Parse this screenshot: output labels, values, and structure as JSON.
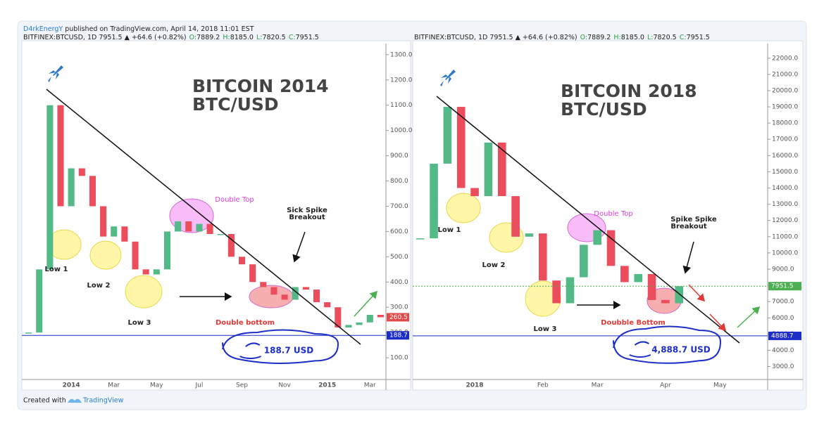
{
  "header": {
    "author": "D4rkEnergY",
    "published": "published on TradingView.com, April 14, 2018 11:01 EST"
  },
  "footer": {
    "created": "Created with",
    "brand": "TradingView"
  },
  "chart_data": [
    {
      "type": "candlestick",
      "symbol_line": [
        "BITFINEX:BTCUSD, 1D  7951.5 ▲ +64.6 (+0.82%)",
        "O:",
        "7889.2",
        "H:",
        "8185.0",
        "L:",
        "7820.5",
        "C:",
        "7951.5"
      ],
      "title": [
        "BITCOIN 2014",
        "BTC/USD"
      ],
      "categories": [
        null,
        null,
        null,
        null,
        "2014",
        null,
        null,
        null,
        "Mar",
        null,
        null,
        null,
        "May",
        null,
        null,
        null,
        "Jul",
        null,
        null,
        null,
        "Sep",
        null,
        null,
        null,
        "Nov",
        null,
        null,
        null,
        "2015",
        null,
        null,
        null,
        "Mar",
        null
      ],
      "values": [
        200,
        450,
        1100,
        700,
        850,
        820,
        700,
        580,
        620,
        560,
        450,
        430,
        450,
        600,
        640,
        600,
        630,
        590,
        590,
        500,
        470,
        400,
        380,
        350,
        330,
        380,
        370,
        320,
        300,
        220,
        230,
        240,
        270,
        260.5
      ],
      "up_color": "#53b987",
      "down_color": "#eb4d5c",
      "ylim": [
        14,
        1344
      ],
      "yticks": [
        {
          "value": 100,
          "label": "100.0"
        },
        {
          "value": 200,
          "label": "200.0"
        },
        {
          "value": 300,
          "label": "300.0"
        },
        {
          "value": 400,
          "label": "400.0"
        },
        {
          "value": 500,
          "label": "500.0"
        },
        {
          "value": 600,
          "label": "600.0"
        },
        {
          "value": 700,
          "label": "700.0"
        },
        {
          "value": 800,
          "label": "800.0"
        },
        {
          "value": 900,
          "label": "900.0"
        },
        {
          "value": 1000,
          "label": "1000.0"
        },
        {
          "value": 1100,
          "label": "1100.0"
        },
        {
          "value": 1200,
          "label": "1200.0"
        },
        {
          "value": 1300,
          "label": "1300.0"
        }
      ],
      "grid": false,
      "price_labels": [
        {
          "value": 260.5,
          "label": "260.5",
          "color": "#e04b4b",
          "line": "none"
        },
        {
          "value": 188.7,
          "label": "188.7",
          "color": "#1c2dc8",
          "line": "solid"
        }
      ],
      "annotations": {
        "double_top": "Double Top",
        "spike_1": "Sick Spike",
        "spike_2": "Breakout",
        "low1": "Low 1",
        "low2": "Low 2",
        "low3": "Low 3",
        "double_bottom": "Double bottom",
        "usd": "188.7 USD"
      }
    },
    {
      "type": "candlestick",
      "symbol_line": [
        "BITFINEX:BTCUSD, 1D  7951.5 ▲ +64.6 (+0.82%)",
        "O:",
        "7889.2",
        "H:",
        "8185.0",
        "L:",
        "7820.5",
        "C:",
        "7951.5"
      ],
      "title": [
        "BITCOIN 2018",
        "BTC/USD"
      ],
      "categories": [
        null,
        null,
        null,
        null,
        "2018",
        null,
        null,
        null,
        null,
        "Feb",
        null,
        null,
        null,
        "Mar",
        null,
        null,
        null,
        null,
        "Apr",
        null,
        null,
        null,
        "May",
        null,
        null,
        null
      ],
      "values": [
        10900,
        15500,
        19000,
        14000,
        13500,
        16800,
        13500,
        11000,
        11200,
        8300,
        6900,
        8500,
        10500,
        11400,
        9200,
        8200,
        8700,
        7100,
        6900,
        7951.5,
        null,
        null,
        null,
        null,
        null,
        null
      ],
      "up_color": "#53b987",
      "down_color": "#eb4d5c",
      "ylim": [
        2200,
        22900
      ],
      "yticks": [
        {
          "value": 3000,
          "label": "3000.0"
        },
        {
          "value": 4000,
          "label": "4000.0"
        },
        {
          "value": 5000,
          "label": "5000.0"
        },
        {
          "value": 6000,
          "label": "6000.0"
        },
        {
          "value": 7000,
          "label": "7000.0"
        },
        {
          "value": 8000,
          "label": "8000.0"
        },
        {
          "value": 9000,
          "label": "9000.0"
        },
        {
          "value": 10000,
          "label": "10000.0"
        },
        {
          "value": 11000,
          "label": "11000.0"
        },
        {
          "value": 12000,
          "label": "12000.0"
        },
        {
          "value": 13000,
          "label": "13000.0"
        },
        {
          "value": 14000,
          "label": "14000.0"
        },
        {
          "value": 15000,
          "label": "15000.0"
        },
        {
          "value": 16000,
          "label": "16000.0"
        },
        {
          "value": 17000,
          "label": "17000.0"
        },
        {
          "value": 18000,
          "label": "18000.0"
        },
        {
          "value": 19000,
          "label": "19000.0"
        },
        {
          "value": 20000,
          "label": "20000.0"
        },
        {
          "value": 21000,
          "label": "21000.0"
        },
        {
          "value": 22000,
          "label": "22000.0"
        }
      ],
      "grid": false,
      "price_labels": [
        {
          "value": 7951.5,
          "label": "7951.5",
          "color": "#4caf50",
          "line": "dotted"
        },
        {
          "value": 4888.7,
          "label": "4888.7",
          "color": "#1c2dc8",
          "line": "solid"
        }
      ],
      "annotations": {
        "double_top": "Double Top",
        "spike_1": "Spike Spike",
        "spike_2": "Breakout",
        "low1": "Low 1",
        "low2": "Low 2",
        "low3": "Low 3",
        "double_bottom": "Doubble Bottom",
        "usd": "4,888.7 USD"
      }
    }
  ]
}
